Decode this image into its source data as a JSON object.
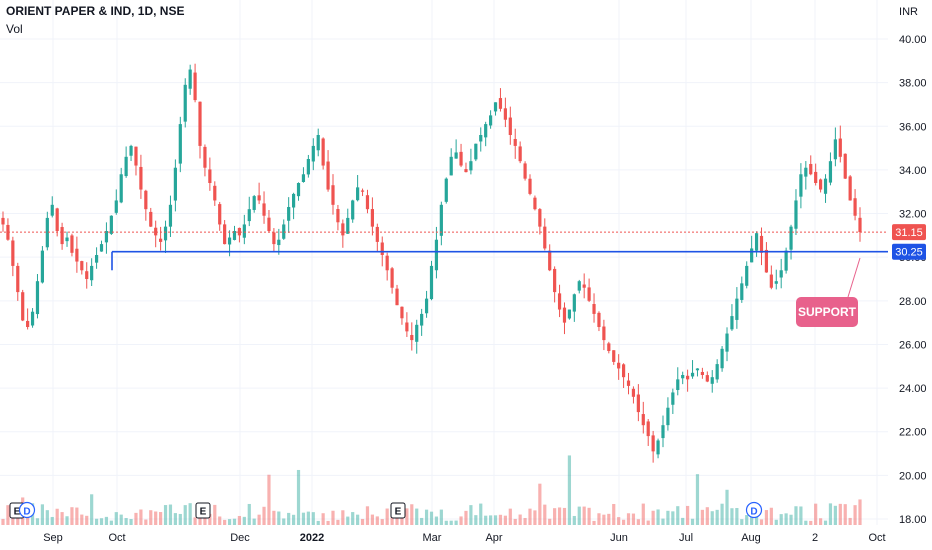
{
  "header": {
    "title": "ORIENT PAPER & IND, 1D, NSE",
    "volume_label": "Vol",
    "currency": "INR"
  },
  "price_axis": {
    "ticks": [
      "40.00",
      "38.00",
      "36.00",
      "34.00",
      "32.00",
      "30.00",
      "28.00",
      "26.00",
      "24.00",
      "22.00",
      "20.00",
      "18.00"
    ]
  },
  "time_axis": {
    "labels": [
      "Sep",
      "Oct",
      "Dec",
      "2022",
      "Mar",
      "Apr",
      "Jun",
      "Jul",
      "Aug",
      "2",
      "Oct"
    ]
  },
  "badges": {
    "last_price": "31.15",
    "support_level": "30.25"
  },
  "annotation": {
    "text": "SUPPORT"
  },
  "events": [
    "E",
    "D",
    "E",
    "E",
    "D"
  ],
  "colors": {
    "up": "#26a69a",
    "down": "#ef5350",
    "support_line": "#1e53e5",
    "annotation": "#e8618c"
  },
  "chart_data": {
    "type": "candlestick",
    "title": "ORIENT PAPER & IND, 1D, NSE",
    "y_unit": "INR",
    "ylim": [
      18,
      40
    ],
    "grid": true,
    "support": 30.25,
    "last_close": 31.15,
    "closes": [
      31.5,
      30.8,
      29.6,
      28.4,
      27.1,
      26.8,
      27.5,
      28.9,
      30.3,
      31.8,
      32.4,
      31.2,
      30.6,
      30.9,
      30.2,
      29.8,
      29.4,
      29.0,
      29.6,
      30.1,
      30.6,
      31.2,
      31.9,
      32.6,
      33.8,
      34.6,
      35.1,
      34.2,
      33.1,
      32.2,
      31.4,
      31.0,
      30.7,
      31.4,
      32.4,
      34.1,
      36.1,
      37.9,
      38.6,
      37.2,
      35.1,
      34.1,
      33.4,
      32.6,
      31.5,
      30.6,
      30.9,
      31.2,
      31.0,
      31.5,
      32.2,
      32.8,
      32.6,
      31.9,
      31.2,
      30.6,
      30.8,
      31.5,
      32.3,
      32.9,
      33.4,
      33.8,
      34.5,
      35.1,
      35.6,
      34.2,
      33.1,
      32.4,
      31.6,
      31.0,
      31.8,
      32.6,
      33.2,
      33.0,
      32.2,
      31.4,
      30.7,
      30.1,
      29.4,
      28.6,
      27.8,
      27.2,
      26.6,
      26.2,
      26.9,
      27.4,
      28.1,
      29.6,
      30.8,
      32.4,
      33.6,
      34.6,
      34.8,
      34.2,
      33.9,
      34.4,
      35.2,
      35.6,
      36.1,
      36.5,
      37.1,
      36.8,
      36.3,
      35.6,
      35.1,
      34.4,
      33.6,
      32.9,
      32.2,
      31.4,
      30.4,
      29.4,
      28.4,
      27.6,
      27.0,
      27.6,
      28.3,
      28.9,
      28.6,
      28.0,
      27.4,
      26.8,
      26.2,
      25.7,
      25.2,
      24.9,
      24.5,
      24.1,
      23.6,
      22.9,
      22.3,
      21.8,
      21.1,
      21.6,
      22.3,
      23.1,
      23.8,
      24.4,
      24.6,
      24.4,
      24.7,
      24.9,
      24.6,
      24.3,
      24.5,
      25.1,
      25.8,
      26.5,
      27.3,
      28.1,
      28.8,
      29.6,
      30.4,
      31.1,
      30.2,
      29.3,
      28.6,
      28.9,
      29.4,
      30.3,
      31.4,
      32.6,
      33.8,
      34.1,
      33.8,
      33.4,
      33.1,
      33.6,
      34.4,
      35.4,
      34.6,
      33.6,
      32.6,
      31.9,
      31.15
    ]
  }
}
